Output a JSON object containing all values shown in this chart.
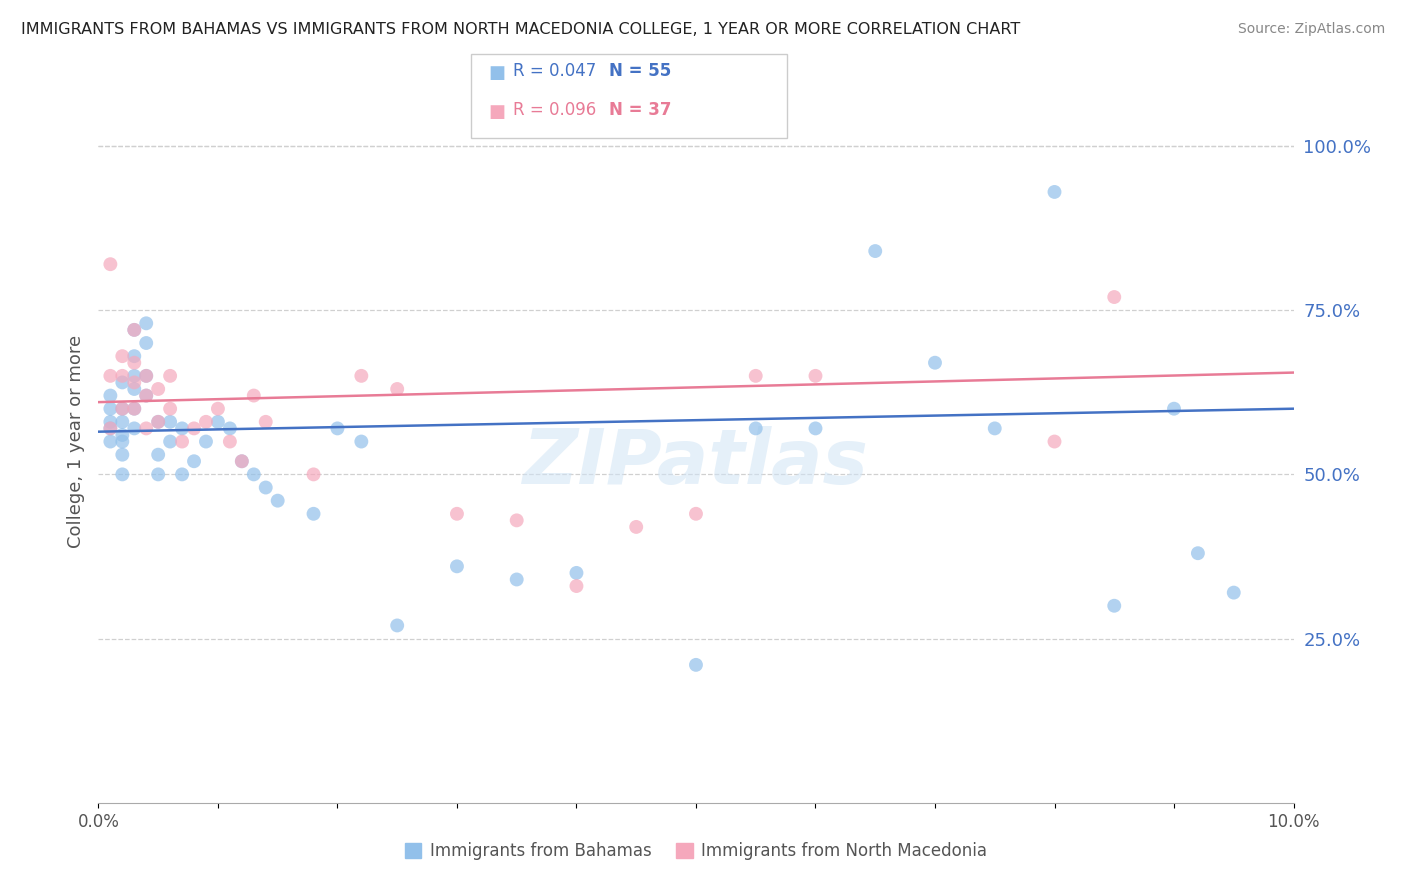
{
  "title": "IMMIGRANTS FROM BAHAMAS VS IMMIGRANTS FROM NORTH MACEDONIA COLLEGE, 1 YEAR OR MORE CORRELATION CHART",
  "source": "Source: ZipAtlas.com",
  "ylabel": "College, 1 year or more",
  "right_yticks": [
    "100.0%",
    "75.0%",
    "50.0%",
    "25.0%"
  ],
  "right_ytick_vals": [
    1.0,
    0.75,
    0.5,
    0.25
  ],
  "xlim": [
    0.0,
    0.1
  ],
  "ylim": [
    0.0,
    1.1
  ],
  "legend1_label": "R = 0.047",
  "legend1_n": "N = 55",
  "legend2_label": "R = 0.096",
  "legend2_n": "N = 37",
  "blue_color": "#92c0ea",
  "pink_color": "#f5a8bc",
  "blue_line_color": "#4472c4",
  "pink_line_color": "#e87b96",
  "legend_text_blue": "#4472c4",
  "legend_text_pink": "#e87b96",
  "legend_n_color": "#4472c4",
  "marker_size": 100,
  "blue_scatter_x": [
    0.001,
    0.001,
    0.001,
    0.001,
    0.001,
    0.002,
    0.002,
    0.002,
    0.002,
    0.002,
    0.002,
    0.002,
    0.003,
    0.003,
    0.003,
    0.003,
    0.003,
    0.003,
    0.004,
    0.004,
    0.004,
    0.004,
    0.005,
    0.005,
    0.005,
    0.006,
    0.006,
    0.007,
    0.007,
    0.008,
    0.009,
    0.01,
    0.011,
    0.012,
    0.013,
    0.014,
    0.015,
    0.018,
    0.02,
    0.022,
    0.025,
    0.03,
    0.035,
    0.04,
    0.05,
    0.055,
    0.06,
    0.065,
    0.07,
    0.075,
    0.08,
    0.085,
    0.09,
    0.092,
    0.095
  ],
  "blue_scatter_y": [
    0.6,
    0.58,
    0.55,
    0.62,
    0.57,
    0.64,
    0.6,
    0.56,
    0.58,
    0.55,
    0.53,
    0.5,
    0.72,
    0.68,
    0.65,
    0.6,
    0.57,
    0.63,
    0.73,
    0.7,
    0.65,
    0.62,
    0.58,
    0.53,
    0.5,
    0.58,
    0.55,
    0.57,
    0.5,
    0.52,
    0.55,
    0.58,
    0.57,
    0.52,
    0.5,
    0.48,
    0.46,
    0.44,
    0.57,
    0.55,
    0.27,
    0.36,
    0.34,
    0.35,
    0.21,
    0.57,
    0.57,
    0.84,
    0.67,
    0.57,
    0.93,
    0.3,
    0.6,
    0.38,
    0.32
  ],
  "pink_scatter_x": [
    0.001,
    0.001,
    0.001,
    0.002,
    0.002,
    0.002,
    0.003,
    0.003,
    0.003,
    0.003,
    0.004,
    0.004,
    0.004,
    0.005,
    0.005,
    0.006,
    0.006,
    0.007,
    0.008,
    0.009,
    0.01,
    0.011,
    0.012,
    0.013,
    0.014,
    0.018,
    0.022,
    0.025,
    0.03,
    0.035,
    0.04,
    0.045,
    0.05,
    0.055,
    0.06,
    0.08,
    0.085
  ],
  "pink_scatter_y": [
    0.82,
    0.65,
    0.57,
    0.68,
    0.65,
    0.6,
    0.72,
    0.67,
    0.64,
    0.6,
    0.65,
    0.62,
    0.57,
    0.63,
    0.58,
    0.65,
    0.6,
    0.55,
    0.57,
    0.58,
    0.6,
    0.55,
    0.52,
    0.62,
    0.58,
    0.5,
    0.65,
    0.63,
    0.44,
    0.43,
    0.33,
    0.42,
    0.44,
    0.65,
    0.65,
    0.55,
    0.77
  ],
  "blue_trendline_x": [
    0.0,
    0.1
  ],
  "blue_trendline_y": [
    0.565,
    0.6
  ],
  "pink_trendline_y": [
    0.61,
    0.655
  ],
  "watermark": "ZIPatlas",
  "background_color": "#ffffff",
  "grid_color": "#d0d0d0"
}
